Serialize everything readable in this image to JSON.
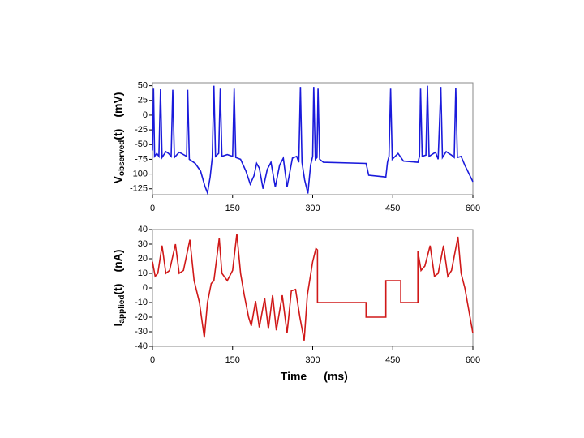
{
  "chart_data": [
    {
      "type": "line",
      "ylabel": {
        "main": "V",
        "sub": "observed",
        "rest": "(t)",
        "unit": "(mV)"
      },
      "xlim": [
        0,
        600
      ],
      "xticks": [
        0,
        150,
        300,
        450,
        600
      ],
      "ylim": [
        -135,
        55
      ],
      "yticks": [
        50,
        25,
        0,
        -25,
        -50,
        -75,
        -100,
        -125
      ],
      "color": "#1a1adb",
      "x": [
        0,
        2,
        4,
        8,
        12,
        15,
        18,
        25,
        30,
        35,
        38,
        41,
        50,
        60,
        64,
        66,
        69,
        80,
        90,
        98,
        103,
        108,
        112,
        115,
        118,
        124,
        127,
        130,
        140,
        150,
        153,
        156,
        165,
        175,
        183,
        190,
        195,
        200,
        207,
        215,
        222,
        230,
        238,
        245,
        252,
        262,
        270,
        274,
        277,
        280,
        285,
        291,
        296,
        300,
        302,
        305,
        308,
        310,
        313,
        320,
        400,
        405,
        437,
        440,
        443,
        446,
        449,
        460,
        470,
        497,
        500,
        502,
        505,
        512,
        515,
        518,
        530,
        535,
        540,
        543,
        550,
        560,
        565,
        568,
        571,
        578,
        585,
        600
      ],
      "values": [
        -60,
        45,
        -70,
        -65,
        -70,
        44,
        -72,
        -62,
        -65,
        -70,
        43,
        -72,
        -63,
        -68,
        -70,
        43,
        -75,
        -82,
        -95,
        -120,
        -132,
        -105,
        -72,
        50,
        -70,
        -65,
        45,
        -70,
        -67,
        -70,
        45,
        -72,
        -75,
        -95,
        -117,
        -103,
        -82,
        -90,
        -125,
        -92,
        -80,
        -122,
        -85,
        -73,
        -122,
        -73,
        -70,
        -80,
        48,
        -80,
        -110,
        -133,
        -85,
        -70,
        48,
        -75,
        -72,
        45,
        -75,
        -80,
        -82,
        -102,
        -105,
        -80,
        -70,
        45,
        -75,
        -65,
        -78,
        -80,
        -70,
        45,
        -70,
        -68,
        50,
        -70,
        -63,
        -75,
        48,
        -72,
        -62,
        -68,
        -72,
        46,
        -72,
        -70,
        -85,
        -113
      ]
    },
    {
      "type": "line",
      "ylabel": {
        "main": "I",
        "sub": "applied",
        "rest": "(t)",
        "unit": "(nA)"
      },
      "xlabel": {
        "main": "Time",
        "unit": "(ms)"
      },
      "xlim": [
        0,
        600
      ],
      "xticks": [
        0,
        150,
        300,
        450,
        600
      ],
      "ylim": [
        -40,
        40
      ],
      "yticks": [
        40,
        30,
        20,
        10,
        0,
        -10,
        -20,
        -30,
        -40
      ],
      "color": "#d01818",
      "x": [
        0,
        5,
        10,
        18,
        25,
        32,
        43,
        50,
        58,
        70,
        78,
        88,
        97,
        103,
        110,
        115,
        125,
        130,
        140,
        150,
        158,
        165,
        172,
        180,
        185,
        193,
        200,
        210,
        217,
        225,
        232,
        243,
        252,
        260,
        268,
        276,
        284,
        290,
        300,
        306,
        309,
        309,
        400,
        400,
        437,
        437,
        465,
        465,
        497,
        497,
        503,
        510,
        520,
        528,
        535,
        545,
        553,
        560,
        572,
        578,
        585,
        600
      ],
      "values": [
        18,
        8,
        10,
        29,
        10,
        12,
        30,
        10,
        12,
        33,
        5,
        -10,
        -34,
        -10,
        3,
        5,
        34,
        10,
        5,
        12,
        37,
        10,
        -5,
        -20,
        -26,
        -9,
        -27,
        -7,
        -28,
        -5,
        -29,
        -5,
        -31,
        -2,
        -1,
        -20,
        -36,
        -5,
        18,
        27,
        26,
        -10,
        -10,
        -20,
        -20,
        5,
        5,
        -10,
        -10,
        25,
        12,
        15,
        29,
        8,
        10,
        29,
        8,
        12,
        35,
        10,
        0,
        -31
      ]
    }
  ]
}
